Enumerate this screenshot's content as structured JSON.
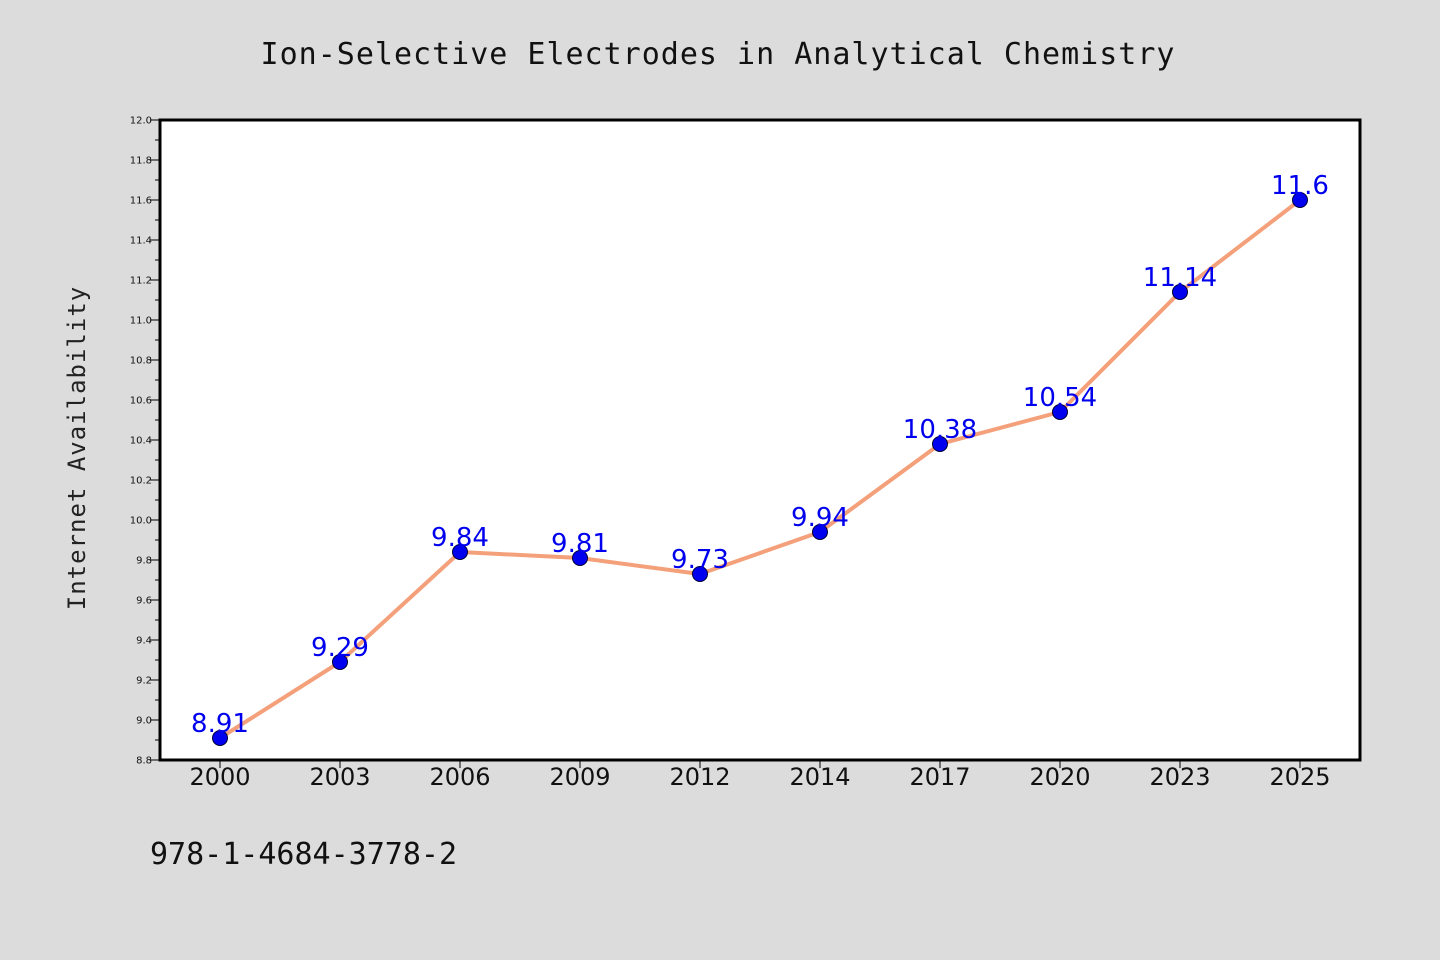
{
  "footer_text": "978-1-4684-3778-2",
  "colors": {
    "background": "#dcdcdc",
    "plot_background": "#ffffff",
    "line": "#f4a07a",
    "marker_fill": "#0000ee",
    "marker_edge": "#000033",
    "data_label": "#0000ee"
  },
  "chart_data": {
    "type": "line",
    "title": "Ion-Selective Electrodes in Analytical Chemistry",
    "xlabel": "",
    "ylabel": "Internet Availability",
    "categories": [
      "2000",
      "2003",
      "2006",
      "2009",
      "2012",
      "2014",
      "2017",
      "2020",
      "2023",
      "2025"
    ],
    "series": [
      {
        "values": [
          8.91,
          9.29,
          9.84,
          9.81,
          9.73,
          9.94,
          10.38,
          10.54,
          11.14,
          11.6
        ],
        "labels": [
          "8.91",
          "9.29",
          "9.84",
          "9.81",
          "9.73",
          "9.94",
          "10.38",
          "10.54",
          "11.14",
          "11.6"
        ]
      }
    ],
    "ylim": [
      8.8,
      12.0
    ],
    "yticks": [
      "8.8",
      "9.0",
      "9.2",
      "9.4",
      "9.6",
      "9.8",
      "10.0",
      "10.2",
      "10.4",
      "10.6",
      "10.8",
      "11.0",
      "11.2",
      "11.4",
      "11.6",
      "11.8",
      "12.0"
    ],
    "grid": false,
    "legend": "none",
    "data_labels": true
  }
}
